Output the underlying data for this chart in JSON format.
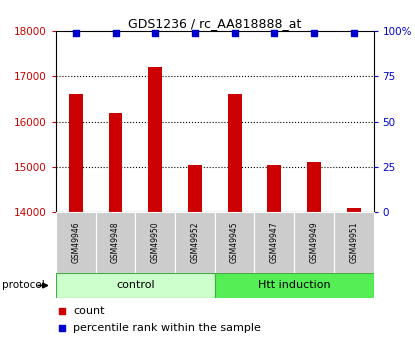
{
  "title": "GDS1236 / rc_AA818888_at",
  "samples": [
    "GSM49946",
    "GSM49948",
    "GSM49950",
    "GSM49952",
    "GSM49945",
    "GSM49947",
    "GSM49949",
    "GSM49951"
  ],
  "counts": [
    16600,
    16200,
    17200,
    15050,
    16600,
    15050,
    15100,
    14100
  ],
  "percentile_ranks": [
    99,
    99,
    99,
    99,
    99,
    99,
    99,
    99
  ],
  "bar_color": "#cc0000",
  "dot_color": "#0000cc",
  "ylim_left": [
    14000,
    18000
  ],
  "ylim_right": [
    0,
    100
  ],
  "yticks_left": [
    14000,
    15000,
    16000,
    17000,
    18000
  ],
  "yticks_right": [
    0,
    25,
    50,
    75,
    100
  ],
  "yticklabels_right": [
    "0",
    "25",
    "50",
    "75",
    "100%"
  ],
  "left_color": "#cc0000",
  "right_color": "#0000cc",
  "bg_color": "#ffffff",
  "sample_box_color": "#cccccc",
  "control_color_light": "#ccffcc",
  "htt_color_dark": "#55ee55",
  "group_border_color": "#44aa44",
  "grid_ticks": [
    15000,
    16000,
    17000
  ],
  "bar_width": 0.35
}
